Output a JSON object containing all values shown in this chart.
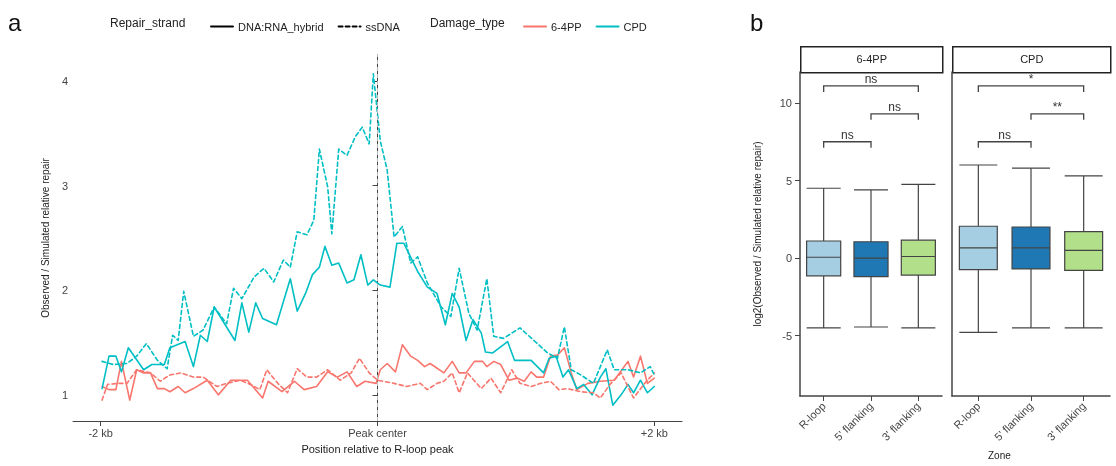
{
  "chart_data": [
    {
      "type": "line",
      "xlabel": "Position relative to R-loop peak",
      "ylabel": "Observed / Simulated relative repair",
      "legend_title": "Repair_strand",
      "annotations": [
        "a",
        "Damage_type"
      ],
      "xlim": [
        -2.2,
        2.2
      ],
      "xticks": [
        {
          "value": -2,
          "label": "-2 kb"
        },
        {
          "value": 0,
          "label": "Peak center"
        },
        {
          "value": 2,
          "label": "+2 kb"
        }
      ],
      "ylim": [
        0.75,
        4.25
      ],
      "yticks": [
        1,
        2,
        3,
        4
      ],
      "grid": false,
      "legend": "top",
      "marker": "none",
      "ref_lines": [
        {
          "axis": "x",
          "value": 0,
          "color": "#bbbbbb",
          "line_style": "dashed"
        }
      ],
      "series": [
        {
          "name": "DNA:RNA_hybrid",
          "color": "#000000",
          "line_style": "solid"
        },
        {
          "name": "ssDNA",
          "color": "#000000",
          "line_style": "dashed"
        },
        {
          "name": "6-4PP",
          "color": "#f8766d",
          "line_style": "solid",
          "x": [
            -1.99,
            -1.94,
            -1.89,
            -1.85,
            -1.79,
            -1.74,
            -1.69,
            -1.64,
            -1.59,
            -1.54,
            -1.5,
            -1.44,
            -1.39,
            -1.33,
            -1.23,
            -1.15,
            -1.06,
            -0.94,
            -0.83,
            -0.79,
            -0.69,
            -0.6,
            -0.53,
            -0.44,
            -0.36,
            -0.29,
            -0.22,
            -0.15,
            -0.09,
            -0.01,
            0.02,
            0.07,
            0.13,
            0.18,
            0.24,
            0.29,
            0.34,
            0.38,
            0.48,
            0.54,
            0.59,
            0.64,
            0.7,
            0.76,
            0.79,
            0.84,
            0.89,
            0.95,
            1.01,
            1.06,
            1.11,
            1.15,
            1.2,
            1.25,
            1.3,
            1.35,
            1.4,
            1.44,
            1.52,
            1.61,
            1.71,
            1.81,
            1.85,
            1.9,
            1.95,
            2.0
          ],
          "values": [
            1.08,
            1.05,
            1.05,
            1.32,
            0.95,
            1.24,
            1.21,
            1.21,
            1.06,
            1.06,
            1.03,
            1.08,
            1.02,
            1.06,
            1.14,
            1.0,
            1.14,
            1.14,
            0.97,
            1.13,
            1.03,
            1.13,
            1.05,
            1.08,
            1.22,
            1.17,
            1.22,
            1.08,
            1.13,
            1.11,
            1.24,
            1.3,
            1.22,
            1.48,
            1.37,
            1.33,
            1.27,
            1.3,
            1.21,
            1.32,
            1.21,
            1.21,
            1.32,
            1.32,
            1.27,
            1.32,
            1.29,
            1.14,
            1.16,
            1.13,
            1.22,
            1.17,
            1.17,
            1.37,
            1.38,
            1.45,
            1.21,
            1.05,
            1.11,
            1.13,
            1.14,
            1.32,
            1.17,
            1.37,
            1.11,
            1.16
          ]
        },
        {
          "name": "CPD",
          "color": "#00bfc4",
          "line_style": "solid",
          "x": [
            -1.99,
            -1.94,
            -1.89,
            -1.85,
            -1.8,
            -1.69,
            -1.63,
            -1.54,
            -1.5,
            -1.39,
            -1.33,
            -1.28,
            -1.23,
            -1.18,
            -1.03,
            -0.98,
            -0.93,
            -0.88,
            -0.83,
            -0.73,
            -0.63,
            -0.58,
            -0.52,
            -0.47,
            -0.42,
            -0.38,
            -0.33,
            -0.28,
            -0.22,
            -0.17,
            -0.12,
            -0.07,
            -0.03,
            0.02,
            0.09,
            0.14,
            0.19,
            0.29,
            0.36,
            0.43,
            0.49,
            0.54,
            0.59,
            0.64,
            0.69,
            0.75,
            0.78,
            0.83,
            0.94,
            0.99,
            1.11,
            1.2,
            1.24,
            1.29,
            1.34,
            1.38,
            1.44,
            1.49,
            1.55,
            1.61,
            1.65,
            1.7,
            1.76,
            1.81,
            1.85,
            1.9,
            1.95,
            2.0
          ],
          "values": [
            1.06,
            1.37,
            1.37,
            1.22,
            1.45,
            1.24,
            1.29,
            1.29,
            1.45,
            1.51,
            1.27,
            1.57,
            1.51,
            1.84,
            1.52,
            1.88,
            1.6,
            1.88,
            1.73,
            1.67,
            2.11,
            1.8,
            1.97,
            2.15,
            2.22,
            2.42,
            2.24,
            2.26,
            2.07,
            2.1,
            2.34,
            2.05,
            2.1,
            2.05,
            2.03,
            2.45,
            2.45,
            2.18,
            2.03,
            1.97,
            1.67,
            1.97,
            1.84,
            1.52,
            1.72,
            1.59,
            1.41,
            1.4,
            1.51,
            1.33,
            1.33,
            1.21,
            1.35,
            1.37,
            1.17,
            1.24,
            1.06,
            1.1,
            1.0,
            1.17,
            1.25,
            0.9,
            1.0,
            1.1,
            1.02,
            1.14,
            1.02,
            1.08
          ]
        },
        {
          "color": "#f8766d",
          "line_style": "dashed",
          "x": [
            -1.99,
            -1.95,
            -1.87,
            -1.81,
            -1.74,
            -1.64,
            -1.57,
            -1.5,
            -1.42,
            -1.33,
            -1.26,
            -1.16,
            -1.09,
            -0.99,
            -0.92,
            -0.85,
            -0.8,
            -0.72,
            -0.65,
            -0.58,
            -0.51,
            -0.44,
            -0.36,
            -0.27,
            -0.19,
            -0.13,
            -0.06,
            0.0,
            0.12,
            0.21,
            0.31,
            0.36,
            0.43,
            0.48,
            0.54,
            0.59,
            0.65,
            0.75,
            0.82,
            0.89,
            0.97,
            1.03,
            1.11,
            1.18,
            1.25,
            1.31,
            1.37,
            1.47,
            1.56,
            1.61,
            1.68,
            1.76,
            1.85,
            1.93,
            2.0
          ],
          "values": [
            0.95,
            1.1,
            1.11,
            1.11,
            1.24,
            1.21,
            1.13,
            1.19,
            1.21,
            1.17,
            1.17,
            1.08,
            1.11,
            1.14,
            1.1,
            1.05,
            1.24,
            1.11,
            1.02,
            1.25,
            1.17,
            1.17,
            1.24,
            1.14,
            1.21,
            1.35,
            1.21,
            1.14,
            1.11,
            1.08,
            1.11,
            1.05,
            1.11,
            1.13,
            1.21,
            1.02,
            1.21,
            1.06,
            1.16,
            1.02,
            1.24,
            1.11,
            1.08,
            1.11,
            1.13,
            1.05,
            1.06,
            1.03,
            1.02,
            0.97,
            1.1,
            1.21,
            0.97,
            1.11,
            1.21
          ]
        },
        {
          "color": "#00bfc4",
          "line_style": "dashed",
          "x": [
            -1.99,
            -1.91,
            -1.81,
            -1.74,
            -1.67,
            -1.59,
            -1.52,
            -1.48,
            -1.44,
            -1.4,
            -1.33,
            -1.26,
            -1.18,
            -1.09,
            -1.04,
            -0.98,
            -0.89,
            -0.82,
            -0.75,
            -0.68,
            -0.63,
            -0.58,
            -0.51,
            -0.46,
            -0.42,
            -0.36,
            -0.33,
            -0.28,
            -0.22,
            -0.16,
            -0.11,
            -0.06,
            -0.03,
            0.02,
            0.07,
            0.12,
            0.18,
            0.24,
            0.29,
            0.36,
            0.46,
            0.53,
            0.59,
            0.66,
            0.72,
            0.79,
            0.84,
            0.91,
            1.03,
            1.13,
            1.23,
            1.3,
            1.35,
            1.4,
            1.47,
            1.56,
            1.61,
            1.66,
            1.71,
            1.81,
            1.9,
            1.97,
            2.0
          ],
          "values": [
            1.32,
            1.29,
            1.3,
            1.37,
            1.49,
            1.33,
            1.25,
            1.57,
            1.52,
            1.99,
            1.56,
            1.62,
            1.84,
            1.68,
            2.02,
            1.92,
            2.13,
            2.21,
            2.08,
            2.29,
            2.22,
            2.56,
            2.53,
            2.67,
            3.35,
            2.99,
            2.54,
            3.35,
            3.29,
            3.47,
            3.56,
            3.4,
            4.07,
            3.43,
            3.15,
            2.51,
            2.61,
            2.26,
            2.32,
            2.07,
            1.84,
            1.75,
            2.21,
            1.78,
            1.62,
            2.11,
            1.56,
            1.54,
            1.64,
            1.52,
            1.4,
            1.35,
            1.65,
            1.24,
            1.19,
            1.11,
            1.27,
            1.43,
            1.24,
            1.24,
            1.21,
            1.27,
            1.19
          ]
        }
      ]
    },
    {
      "type": "box",
      "title": "6-4PP",
      "ylabel": "log2(Observed / Simulated relative repair)",
      "annotations": [
        "ns",
        "ns",
        "ns",
        "b"
      ],
      "categories": [
        "R-loop",
        "5' flanking",
        "3' flanking"
      ],
      "colors": [
        "#a6cee3",
        "#1f78b4",
        "#b2df8a"
      ],
      "ylim": [
        -8.9,
        12
      ],
      "yticks": [
        -5,
        0,
        5,
        10
      ],
      "grid": false,
      "boxes": [
        {
          "low": -4.5,
          "q1": -1.15,
          "median": 0.05,
          "q3": 1.1,
          "high": 4.5
        },
        {
          "low": -4.45,
          "q1": -1.2,
          "median": 0,
          "q3": 1.05,
          "high": 4.4
        },
        {
          "low": -4.5,
          "q1": -1.1,
          "median": 0.1,
          "q3": 1.15,
          "high": 4.75
        }
      ]
    },
    {
      "type": "box",
      "title": "CPD",
      "xlabel": "Zone",
      "annotations": [
        "*",
        "**",
        "ns"
      ],
      "categories": [
        "R-loop",
        "5' flanking",
        "3' flanking"
      ],
      "colors": [
        "#a6cee3",
        "#1f78b4",
        "#b2df8a"
      ],
      "ylim": [
        -8.9,
        12
      ],
      "yticks": [
        -5,
        0,
        5,
        10
      ],
      "grid": false,
      "tick_labels": "x",
      "boxes": [
        {
          "low": -4.8,
          "q1": -0.75,
          "median": 0.65,
          "q3": 2.05,
          "high": 6.0
        },
        {
          "low": -4.5,
          "q1": -0.7,
          "median": 0.65,
          "q3": 2.0,
          "high": 5.8
        },
        {
          "low": -4.5,
          "q1": -0.8,
          "median": 0.5,
          "q3": 1.7,
          "high": 5.3
        }
      ]
    }
  ]
}
